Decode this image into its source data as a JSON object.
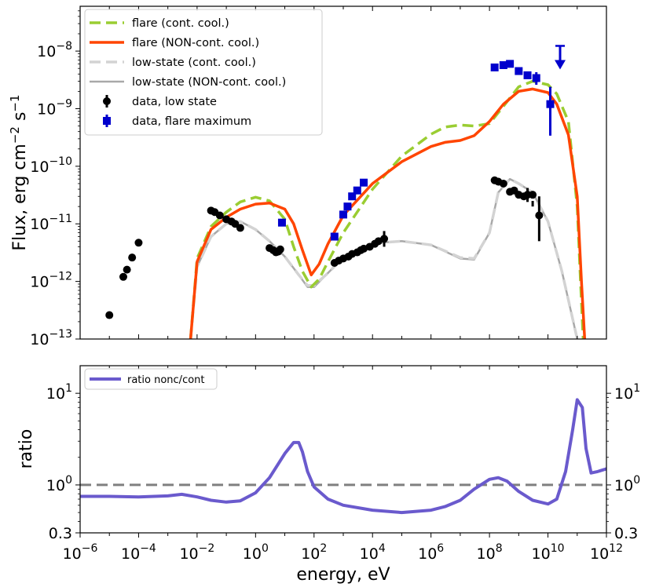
{
  "chart_data": [
    {
      "type": "line",
      "xlabel": "energy, eV",
      "ylabel": "Flux, erg cm^-2 s^-1",
      "x_scale": "log",
      "y_scale": "log",
      "xlim": [
        1e-06,
        1000000000000.0
      ],
      "ylim": [
        1e-13,
        6e-08
      ],
      "y_ticks": [
        {
          "exp": -13,
          "label": "10",
          "sup": "−13"
        },
        {
          "exp": -12,
          "label": "10",
          "sup": "−12"
        },
        {
          "exp": -11,
          "label": "10",
          "sup": "−11"
        },
        {
          "exp": -10,
          "label": "10",
          "sup": "−10"
        },
        {
          "exp": -9,
          "label": "10",
          "sup": "−9"
        },
        {
          "exp": -8,
          "label": "10",
          "sup": "−8"
        }
      ],
      "legend_position": "upper-left",
      "series": [
        {
          "name": "flare (cont. cool.)",
          "style": "dashed",
          "color": "#9acd32",
          "x": [
            0.006,
            0.01,
            0.03,
            0.1,
            0.3,
            1,
            3,
            10,
            20,
            40,
            80,
            150,
            300,
            1000,
            10000.0,
            100000.0,
            1000000.0,
            3000000.0,
            10000000.0,
            30000000.0,
            100000000.0,
            300000000.0,
            1000000000.0,
            3000000000.0,
            10000000000.0,
            20000000000.0,
            50000000000.0,
            100000000000.0,
            130000000000.0,
            160000000000.0
          ],
          "y": [
            1e-13,
            2.5e-12,
            9e-12,
            1.6e-11,
            2.4e-11,
            2.9e-11,
            2.5e-11,
            1.2e-11,
            4e-12,
            1.5e-12,
            8e-13,
            1.1e-12,
            2.2e-12,
            7e-12,
            4e-11,
            1.5e-10,
            3.6e-10,
            4.8e-10,
            5.2e-10,
            5e-10,
            5.5e-10,
            1.1e-09,
            2.4e-09,
            3e-09,
            2.6e-09,
            1.8e-09,
            6e-10,
            2e-11,
            1e-12,
            1e-13
          ]
        },
        {
          "name": "flare (NON-cont. cool.)",
          "style": "solid",
          "color": "#ff4500",
          "x": [
            0.006,
            0.01,
            0.03,
            0.1,
            0.3,
            1,
            3,
            10,
            20,
            40,
            80,
            150,
            300,
            1000,
            10000.0,
            100000.0,
            1000000.0,
            3000000.0,
            10000000.0,
            30000000.0,
            100000000.0,
            300000000.0,
            1000000000.0,
            3000000000.0,
            10000000000.0,
            20000000000.0,
            50000000000.0,
            100000000000.0,
            140000000000.0,
            180000000000.0
          ],
          "y": [
            1e-13,
            2.2e-12,
            8e-12,
            1.3e-11,
            1.8e-11,
            2.2e-11,
            2.3e-11,
            1.8e-11,
            1e-11,
            3.5e-12,
            1.3e-12,
            2e-12,
            4.5e-12,
            1.4e-11,
            5e-11,
            1.2e-10,
            2.2e-10,
            2.6e-10,
            2.8e-10,
            3.4e-10,
            6e-10,
            1.2e-09,
            2e-09,
            2.2e-09,
            1.9e-09,
            1.2e-09,
            3.5e-10,
            3e-11,
            1e-12,
            1e-13
          ]
        },
        {
          "name": "low-state (cont. cool.)",
          "style": "dashed",
          "color": "#d3d3d3",
          "x": [
            0.006,
            0.01,
            0.03,
            0.1,
            0.3,
            1,
            3,
            10,
            30,
            60,
            100,
            300,
            1000,
            10000.0,
            100000.0,
            1000000.0,
            10000000.0,
            30000000.0,
            100000000.0,
            200000000.0,
            500000000.0,
            1000000000.0,
            3000000000.0,
            10000000000.0,
            30000000000.0,
            100000000000.0
          ],
          "y": [
            1e-13,
            1.8e-12,
            6e-12,
            1e-11,
            1.1e-11,
            8e-12,
            5e-12,
            2.7e-12,
            1.3e-12,
            8.5e-13,
            8.5e-13,
            1.4e-12,
            2.6e-12,
            4.6e-12,
            5e-12,
            4.3e-12,
            2.6e-12,
            2.5e-12,
            7e-12,
            3.5e-11,
            6e-11,
            5e-11,
            3.5e-11,
            1.1e-11,
            1.5e-12,
            1e-13
          ]
        },
        {
          "name": "low-state (NON-cont. cool.)",
          "style": "solid",
          "color": "#a9a9a9",
          "x": [
            0.006,
            0.01,
            0.03,
            0.1,
            0.3,
            1,
            3,
            10,
            30,
            60,
            100,
            300,
            1000,
            10000.0,
            100000.0,
            1000000.0,
            10000000.0,
            30000000.0,
            100000000.0,
            200000000.0,
            500000000.0,
            1000000000.0,
            3000000000.0,
            10000000000.0,
            30000000000.0,
            100000000000.0
          ],
          "y": [
            1e-13,
            1.8e-12,
            6e-12,
            1e-11,
            1.1e-11,
            8e-12,
            5e-12,
            2.7e-12,
            1.3e-12,
            8e-13,
            8e-13,
            1.4e-12,
            2.6e-12,
            4.6e-12,
            5e-12,
            4.3e-12,
            2.5e-12,
            2.4e-12,
            7e-12,
            3.5e-11,
            6e-11,
            5e-11,
            3.5e-11,
            1.1e-11,
            1.5e-12,
            1e-13
          ]
        },
        {
          "name": "data, low state",
          "style": "points",
          "marker": "circle",
          "color": "#000000",
          "x": [
            1e-05,
            3e-05,
            4e-05,
            6e-05,
            0.0001,
            0.03,
            0.04,
            0.06,
            0.1,
            0.15,
            0.2,
            0.3,
            3,
            4,
            5,
            6,
            7,
            500,
            700,
            1000,
            1500,
            2000,
            3000,
            4000,
            5000,
            8000,
            12000.0,
            16000.0,
            25000.0,
            150000000.0,
            200000000.0,
            300000000.0,
            500000000.0,
            700000000.0,
            1000000000.0,
            1500000000.0,
            2000000000.0,
            3000000000.0,
            5000000000.0
          ],
          "y": [
            2.6e-13,
            1.2e-12,
            1.6e-12,
            2.6e-12,
            4.7e-12,
            1.7e-11,
            1.6e-11,
            1.4e-11,
            1.2e-11,
            1.1e-11,
            1e-11,
            8.5e-12,
            3.8e-12,
            3.5e-12,
            3.2e-12,
            3.3e-12,
            3.6e-12,
            2.1e-12,
            2.3e-12,
            2.5e-12,
            2.7e-12,
            3e-12,
            3.2e-12,
            3.5e-12,
            3.7e-12,
            4e-12,
            4.5e-12,
            5e-12,
            5.5e-12,
            5.7e-11,
            5.4e-11,
            5e-11,
            3.6e-11,
            3.8e-11,
            3.2e-11,
            3e-11,
            3.2e-11,
            3.2e-11,
            1.4e-11
          ],
          "err_low": [
            null,
            null,
            null,
            null,
            null,
            null,
            null,
            null,
            null,
            null,
            null,
            null,
            null,
            null,
            null,
            null,
            null,
            null,
            null,
            null,
            null,
            null,
            null,
            null,
            null,
            null,
            null,
            null,
            4e-12,
            null,
            null,
            null,
            null,
            null,
            null,
            null,
            2.4e-11,
            2.5e-11,
            5e-12
          ],
          "err_high": [
            null,
            null,
            null,
            null,
            null,
            null,
            null,
            null,
            null,
            null,
            null,
            null,
            null,
            null,
            null,
            null,
            null,
            null,
            null,
            null,
            null,
            null,
            null,
            null,
            null,
            null,
            null,
            null,
            7.5e-12,
            null,
            null,
            null,
            null,
            null,
            null,
            null,
            4.2e-11,
            2e-11,
            3e-11
          ]
        },
        {
          "name": "data, flare maximum",
          "style": "points",
          "marker": "square",
          "color": "#0000cd",
          "x": [
            8,
            500,
            1000,
            1400,
            2000,
            3000,
            5000,
            150000000.0,
            300000000.0,
            500000000.0,
            1000000000.0,
            2000000000.0,
            4000000000.0,
            12000000000.0
          ],
          "y": [
            1.05e-11,
            6e-12,
            1.45e-11,
            2e-11,
            3e-11,
            3.8e-11,
            5.2e-11,
            5.2e-09,
            5.7e-09,
            6e-09,
            4.5e-09,
            3.8e-09,
            3.4e-09,
            1.2e-09
          ],
          "err_low": [
            null,
            null,
            null,
            null,
            null,
            null,
            null,
            null,
            null,
            null,
            null,
            null,
            2.6e-09,
            3.4e-10
          ],
          "err_high": [
            null,
            null,
            null,
            null,
            null,
            null,
            null,
            null,
            null,
            null,
            null,
            null,
            4.3e-09,
            2.4e-09
          ]
        }
      ],
      "upper_limits": [
        {
          "series": "data, flare maximum",
          "x": 26000000000.0,
          "y": 9e-09
        }
      ]
    },
    {
      "type": "line",
      "xlabel": "energy, eV",
      "ylabel": "ratio",
      "x_scale": "log",
      "y_scale": "log",
      "xlim": [
        1e-06,
        1000000000000.0
      ],
      "ylim": [
        0.3,
        20
      ],
      "x_ticks": [
        {
          "exp": -6,
          "label": "10",
          "sup": "−6"
        },
        {
          "exp": -4,
          "label": "10",
          "sup": "−4"
        },
        {
          "exp": -2,
          "label": "10",
          "sup": "−2"
        },
        {
          "exp": 0,
          "label": "10",
          "sup": "0"
        },
        {
          "exp": 2,
          "label": "10",
          "sup": "2"
        },
        {
          "exp": 4,
          "label": "10",
          "sup": "4"
        },
        {
          "exp": 6,
          "label": "10",
          "sup": "6"
        },
        {
          "exp": 8,
          "label": "10",
          "sup": "8"
        },
        {
          "exp": 10,
          "label": "10",
          "sup": "10"
        },
        {
          "exp": 12,
          "label": "10",
          "sup": "12"
        }
      ],
      "y_ticks": [
        {
          "value": 0.3,
          "label": "0.3",
          "sup": ""
        },
        {
          "value": 1,
          "label": "10",
          "sup": "0"
        },
        {
          "value": 10,
          "label": "10",
          "sup": "1"
        }
      ],
      "reference_line": {
        "y": 1,
        "style": "dashed",
        "color": "#808080"
      },
      "legend_position": "upper-left",
      "series": [
        {
          "name": "ratio nonc/cont",
          "style": "solid",
          "color": "#6a5acd",
          "x": [
            1e-06,
            1e-05,
            0.0001,
            0.001,
            0.003,
            0.01,
            0.03,
            0.1,
            0.3,
            1,
            3,
            10,
            20,
            30,
            40,
            60,
            100,
            300,
            1000.0,
            10000.0,
            100000.0,
            1000000.0,
            3000000.0,
            10000000.0,
            30000000.0,
            100000000.0,
            200000000.0,
            400000000.0,
            1000000000.0,
            3000000000.0,
            10000000000.0,
            20000000000.0,
            40000000000.0,
            70000000000.0,
            100000000000.0,
            150000000000.0,
            200000000000.0,
            300000000000.0,
            500000000000.0,
            1000000000000.0
          ],
          "y": [
            0.75,
            0.75,
            0.74,
            0.76,
            0.79,
            0.74,
            0.68,
            0.65,
            0.67,
            0.82,
            1.2,
            2.2,
            2.9,
            2.9,
            2.3,
            1.4,
            0.95,
            0.7,
            0.6,
            0.53,
            0.5,
            0.53,
            0.58,
            0.68,
            0.9,
            1.15,
            1.2,
            1.1,
            0.85,
            0.68,
            0.62,
            0.7,
            1.4,
            4,
            8.5,
            7,
            2.5,
            1.35,
            1.4,
            1.5
          ]
        }
      ]
    }
  ]
}
